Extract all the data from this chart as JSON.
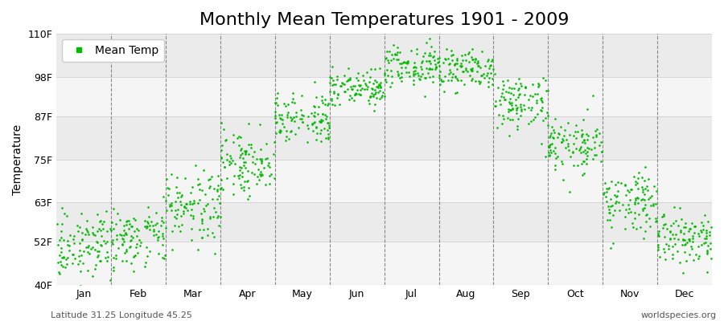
{
  "title": "Monthly Mean Temperatures 1901 - 2009",
  "ylabel": "Temperature",
  "xlabel_bottom_left": "Latitude 31.25 Longitude 45.25",
  "xlabel_bottom_right": "worldspecies.org",
  "legend_label": "Mean Temp",
  "dot_color": "#00bb00",
  "background_color": "#ffffff",
  "band_colors": [
    "#f5f5f5",
    "#ebebeb"
  ],
  "ytick_labels": [
    "40F",
    "52F",
    "63F",
    "75F",
    "87F",
    "98F",
    "110F"
  ],
  "ytick_values": [
    40,
    52,
    63,
    75,
    87,
    98,
    110
  ],
  "ylim": [
    40,
    110
  ],
  "months": [
    "Jan",
    "Feb",
    "Mar",
    "Apr",
    "May",
    "Jun",
    "Jul",
    "Aug",
    "Sep",
    "Oct",
    "Nov",
    "Dec"
  ],
  "monthly_mean_temps": [
    51,
    54,
    62,
    74,
    87,
    95,
    101,
    100,
    91,
    79,
    63,
    53
  ],
  "monthly_std_temps": [
    4.0,
    4.5,
    5.0,
    4.5,
    3.5,
    3.0,
    3.0,
    3.0,
    4.0,
    4.0,
    4.5,
    4.0
  ],
  "n_years": 109,
  "title_fontsize": 16,
  "axis_fontsize": 10,
  "tick_fontsize": 9,
  "dot_size": 3.5,
  "dot_alpha": 1.0
}
